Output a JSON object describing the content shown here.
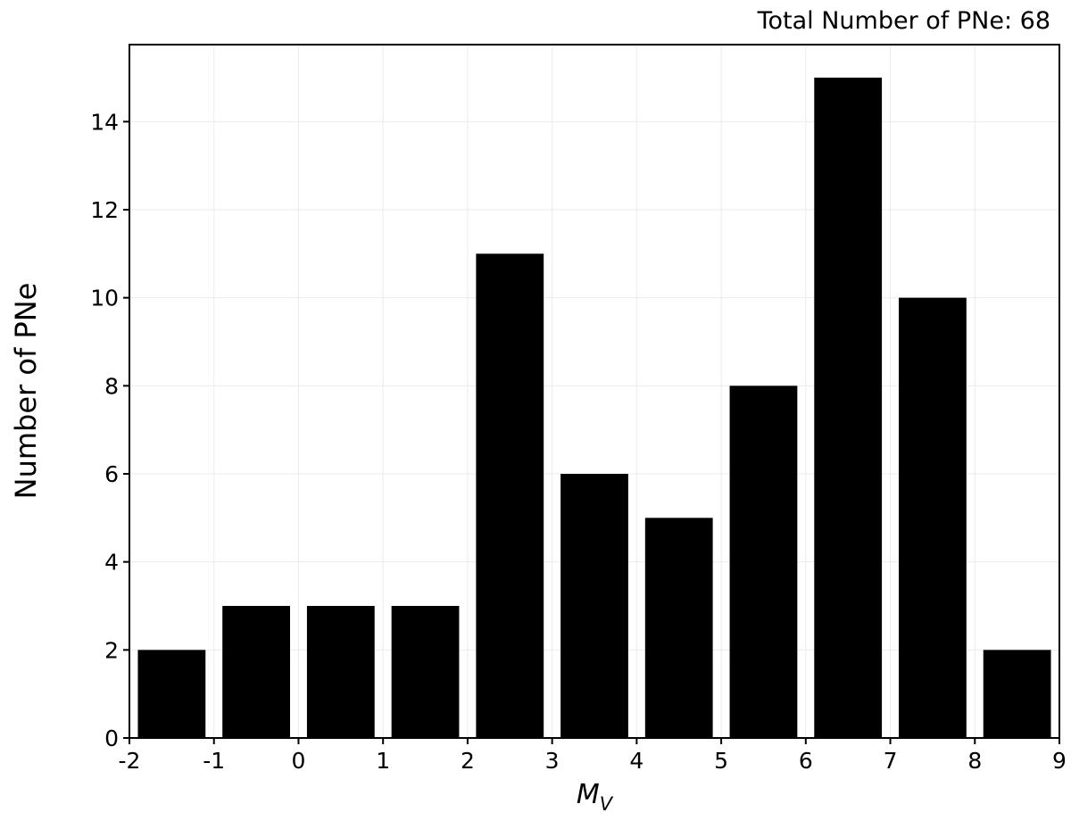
{
  "chart_data": {
    "type": "histogram",
    "annotation": "Total Number of PNe: 68",
    "xlabel": "M",
    "xlabel_subscript": "V",
    "ylabel": "Number of PNe",
    "bins": [
      -2,
      -1,
      0,
      1,
      2,
      3,
      4,
      5,
      6,
      7,
      8,
      9
    ],
    "values": [
      2,
      3,
      3,
      3,
      11,
      6,
      5,
      8,
      15,
      10,
      2
    ],
    "color": "#000000",
    "rwidth": 0.8,
    "xlim": [
      -2,
      9
    ],
    "xticks": [
      -2,
      -1,
      0,
      1,
      2,
      3,
      4,
      5,
      6,
      7,
      8,
      9
    ],
    "ylim": [
      0,
      15.75
    ],
    "yticks": [
      0,
      2,
      4,
      6,
      8,
      10,
      12,
      14
    ],
    "grid": true
  }
}
